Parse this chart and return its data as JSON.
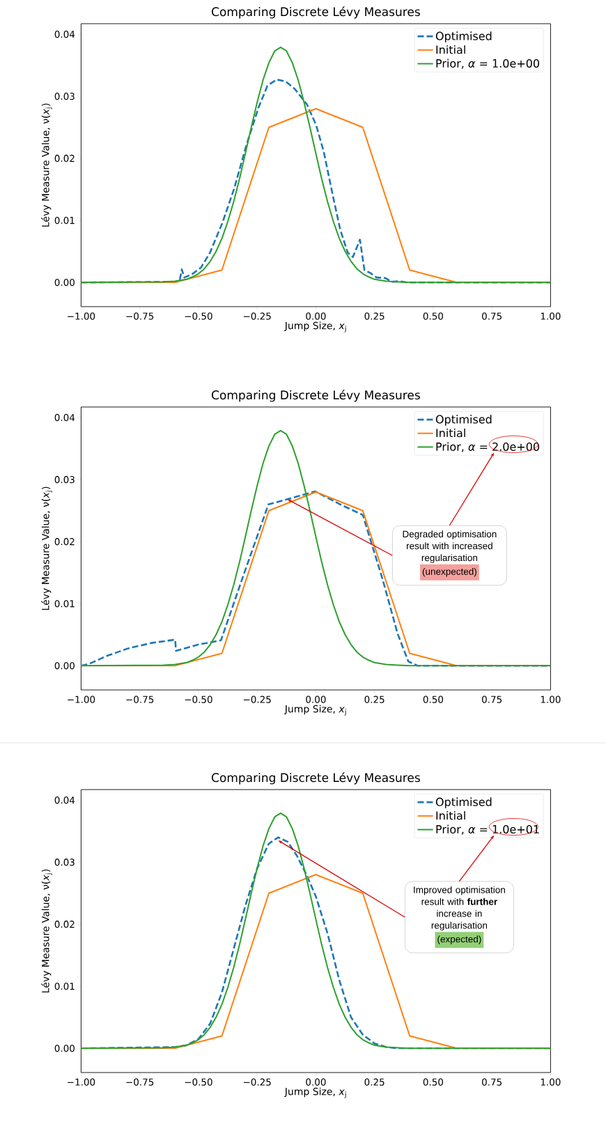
{
  "chart_data": [
    {
      "type": "line",
      "title": "Comparing Discrete Lévy Measures",
      "xlabel": "Jump Size, *x*$_{j}$",
      "ylabel": "Lévy Measure Value, ν(*x*$_{j}$)",
      "xlim": [
        -1,
        1
      ],
      "ylim": [
        -0.0039,
        0.0417
      ],
      "xticks": [
        {
          "value": -1,
          "label": "−1.00"
        },
        {
          "value": -0.75,
          "label": "−0.75"
        },
        {
          "value": -0.5,
          "label": "−0.50"
        },
        {
          "value": -0.25,
          "label": "−0.25"
        },
        {
          "value": 0,
          "label": "0.00"
        },
        {
          "value": 0.25,
          "label": "0.25"
        },
        {
          "value": 0.5,
          "label": "0.50"
        },
        {
          "value": 0.75,
          "label": "0.75"
        },
        {
          "value": 1,
          "label": "1.00"
        }
      ],
      "yticks": [
        {
          "value": 0,
          "label": "0.00"
        },
        {
          "value": 0.01,
          "label": "0.01"
        },
        {
          "value": 0.02,
          "label": "0.02"
        },
        {
          "value": 0.03,
          "label": "0.03"
        },
        {
          "value": 0.04,
          "label": "0.04"
        }
      ],
      "legend": "top right",
      "series": [
        {
          "name": "Optimised",
          "color": "#1f77b4",
          "line_style": "dashed",
          "x": [
            -1,
            -0.6,
            -0.58,
            -0.571,
            -0.56,
            -0.528,
            -0.489,
            -0.451,
            -0.399,
            -0.348,
            -0.296,
            -0.244,
            -0.206,
            -0.167,
            -0.128,
            -0.09,
            -0.038,
            0.001,
            0.033,
            0.072,
            0.104,
            0.136,
            0.158,
            0.188,
            0.207,
            0.233,
            0.259,
            0.297,
            0.323,
            0.355,
            0.387,
            1
          ],
          "values": [
            0,
            0.0001,
            0.0003,
            0.0021,
            0.0008,
            0.0013,
            0.0024,
            0.0048,
            0.0095,
            0.0151,
            0.0221,
            0.0282,
            0.0317,
            0.0327,
            0.0324,
            0.0312,
            0.0287,
            0.0254,
            0.0212,
            0.0141,
            0.0085,
            0.0048,
            0.0041,
            0.0069,
            0.002,
            0.0015,
            0.0008,
            0.0007,
            0.0001,
            0.0002,
            0,
            0
          ]
        },
        {
          "name": "Initial",
          "color": "#ff7f0e",
          "line_style": "solid",
          "x": [
            -1,
            -0.6,
            -0.4,
            -0.2,
            0,
            0.2,
            0.4,
            0.6,
            1
          ],
          "values": [
            0,
            0,
            0.002,
            0.025,
            0.028,
            0.025,
            0.002,
            0,
            0
          ]
        },
        {
          "name": "Prior, *α* = 1.0e+00",
          "color": "#2ca02c",
          "line_style": "solid",
          "x": [
            -1,
            -0.65,
            -0.6,
            -0.55,
            -0.525,
            -0.5,
            -0.475,
            -0.45,
            -0.425,
            -0.4,
            -0.375,
            -0.35,
            -0.325,
            -0.3,
            -0.275,
            -0.25,
            -0.225,
            -0.2,
            -0.175,
            -0.15,
            -0.125,
            -0.1,
            -0.075,
            -0.05,
            -0.025,
            0,
            0.025,
            0.05,
            0.075,
            0.1,
            0.125,
            0.15,
            0.175,
            0.2,
            0.225,
            0.25,
            0.3,
            0.35,
            0.4,
            1
          ],
          "values": [
            0,
            0.0001,
            0.0002,
            0.0005,
            0.0009,
            0.0014,
            0.0022,
            0.0034,
            0.005,
            0.0071,
            0.0098,
            0.013,
            0.0167,
            0.0208,
            0.025,
            0.029,
            0.0326,
            0.0354,
            0.0373,
            0.0379,
            0.0373,
            0.0354,
            0.0326,
            0.029,
            0.025,
            0.0208,
            0.0167,
            0.013,
            0.0098,
            0.0071,
            0.005,
            0.0034,
            0.0022,
            0.0014,
            0.0009,
            0.0005,
            0.0002,
            0.0001,
            0,
            0
          ]
        }
      ]
    },
    {
      "type": "line",
      "title": "Comparing Discrete Lévy Measures",
      "xlabel": "Jump Size, *x*$_{j}$",
      "ylabel": "Lévy Measure Value, ν(*x*$_{j}$)",
      "xlim": [
        -1,
        1
      ],
      "ylim": [
        -0.0039,
        0.0417
      ],
      "xticks": [
        {
          "value": -1,
          "label": "−1.00"
        },
        {
          "value": -0.75,
          "label": "−0.75"
        },
        {
          "value": -0.5,
          "label": "−0.50"
        },
        {
          "value": -0.25,
          "label": "−0.25"
        },
        {
          "value": 0,
          "label": "0.00"
        },
        {
          "value": 0.25,
          "label": "0.25"
        },
        {
          "value": 0.5,
          "label": "0.50"
        },
        {
          "value": 0.75,
          "label": "0.75"
        },
        {
          "value": 1,
          "label": "1.00"
        }
      ],
      "yticks": [
        {
          "value": 0,
          "label": "0.00"
        },
        {
          "value": 0.01,
          "label": "0.01"
        },
        {
          "value": 0.02,
          "label": "0.02"
        },
        {
          "value": 0.03,
          "label": "0.03"
        },
        {
          "value": 0.04,
          "label": "0.04"
        }
      ],
      "legend": "top right",
      "series": [
        {
          "name": "Optimised",
          "color": "#1f77b4",
          "line_style": "dashed",
          "x": [
            -1,
            -0.966,
            -0.889,
            -0.799,
            -0.696,
            -0.599,
            -0.596,
            -0.502,
            -0.404,
            -0.309,
            -0.202,
            -0.115,
            -0.003,
            0.104,
            0.2,
            0.284,
            0.349,
            0.394,
            0.433,
            1
          ],
          "values": [
            0,
            0.0003,
            0.0016,
            0.0028,
            0.0037,
            0.0042,
            0.0024,
            0.0034,
            0.0041,
            0.0145,
            0.026,
            0.0269,
            0.0281,
            0.026,
            0.0243,
            0.014,
            0.0051,
            0.0007,
            0,
            0
          ]
        },
        {
          "name": "Initial",
          "color": "#ff7f0e",
          "line_style": "solid",
          "x": [
            -1,
            -0.6,
            -0.4,
            -0.2,
            0,
            0.2,
            0.4,
            0.6,
            1
          ],
          "values": [
            0,
            0,
            0.002,
            0.025,
            0.028,
            0.025,
            0.002,
            0,
            0
          ]
        },
        {
          "name": "Prior, *α* = 2.0e+00",
          "color": "#2ca02c",
          "line_style": "solid",
          "x": [
            -1,
            -0.65,
            -0.6,
            -0.55,
            -0.525,
            -0.5,
            -0.475,
            -0.45,
            -0.425,
            -0.4,
            -0.375,
            -0.35,
            -0.325,
            -0.3,
            -0.275,
            -0.25,
            -0.225,
            -0.2,
            -0.175,
            -0.15,
            -0.125,
            -0.1,
            -0.075,
            -0.05,
            -0.025,
            0,
            0.025,
            0.05,
            0.075,
            0.1,
            0.125,
            0.15,
            0.175,
            0.2,
            0.225,
            0.25,
            0.3,
            0.35,
            0.4,
            1
          ],
          "values": [
            0,
            0.0001,
            0.0002,
            0.0005,
            0.0009,
            0.0014,
            0.0022,
            0.0034,
            0.005,
            0.0071,
            0.0098,
            0.013,
            0.0167,
            0.0208,
            0.025,
            0.029,
            0.0326,
            0.0354,
            0.0373,
            0.0379,
            0.0373,
            0.0354,
            0.0326,
            0.029,
            0.025,
            0.0208,
            0.0167,
            0.013,
            0.0098,
            0.0071,
            0.005,
            0.0034,
            0.0022,
            0.0014,
            0.0009,
            0.0005,
            0.0002,
            0.0001,
            0,
            0
          ]
        }
      ],
      "annotations": [
        {
          "text": "Degraded optimisation result with increased regularisation",
          "x": -0.12,
          "y": 0.0268
        },
        "(unexpected)"
      ]
    },
    {
      "type": "line",
      "title": "Comparing Discrete Lévy Measures",
      "xlabel": "Jump Size, *x*$_{j}$",
      "ylabel": "Lévy Measure Value, ν(*x*$_{j}$)",
      "xlim": [
        -1,
        1
      ],
      "ylim": [
        -0.0039,
        0.0417
      ],
      "xticks": [
        {
          "value": -1,
          "label": "−1.00"
        },
        {
          "value": -0.75,
          "label": "−0.75"
        },
        {
          "value": -0.5,
          "label": "−0.50"
        },
        {
          "value": -0.25,
          "label": "−0.25"
        },
        {
          "value": 0,
          "label": "0.00"
        },
        {
          "value": 0.25,
          "label": "0.25"
        },
        {
          "value": 0.5,
          "label": "0.50"
        },
        {
          "value": 0.75,
          "label": "0.75"
        },
        {
          "value": 1,
          "label": "1.00"
        }
      ],
      "yticks": [
        {
          "value": 0,
          "label": "0.00"
        },
        {
          "value": 0.01,
          "label": "0.01"
        },
        {
          "value": 0.02,
          "label": "0.02"
        },
        {
          "value": 0.03,
          "label": "0.03"
        },
        {
          "value": 0.04,
          "label": "0.04"
        }
      ],
      "legend": "top right",
      "series": [
        {
          "name": "Optimised",
          "color": "#1f77b4",
          "line_style": "dashed",
          "x": [
            -1,
            -0.6,
            -0.55,
            -0.5,
            -0.45,
            -0.4,
            -0.35,
            -0.3,
            -0.25,
            -0.2,
            -0.16,
            -0.12,
            -0.08,
            -0.04,
            0,
            0.05,
            0.1,
            0.15,
            0.2,
            0.25,
            0.3,
            0.35,
            1
          ],
          "values": [
            0,
            0.0002,
            0.0005,
            0.0015,
            0.004,
            0.009,
            0.016,
            0.023,
            0.029,
            0.033,
            0.034,
            0.0333,
            0.031,
            0.028,
            0.0245,
            0.0185,
            0.011,
            0.005,
            0.0022,
            0.0008,
            0.0002,
            0,
            0
          ]
        },
        {
          "name": "Initial",
          "color": "#ff7f0e",
          "line_style": "solid",
          "x": [
            -1,
            -0.6,
            -0.4,
            -0.2,
            0,
            0.2,
            0.4,
            0.6,
            1
          ],
          "values": [
            0,
            0,
            0.002,
            0.025,
            0.028,
            0.025,
            0.002,
            0,
            0
          ]
        },
        {
          "name": "Prior, *α* = 1.0e+01",
          "color": "#2ca02c",
          "line_style": "solid",
          "x": [
            -1,
            -0.65,
            -0.6,
            -0.55,
            -0.525,
            -0.5,
            -0.475,
            -0.45,
            -0.425,
            -0.4,
            -0.375,
            -0.35,
            -0.325,
            -0.3,
            -0.275,
            -0.25,
            -0.225,
            -0.2,
            -0.175,
            -0.15,
            -0.125,
            -0.1,
            -0.075,
            -0.05,
            -0.025,
            0,
            0.025,
            0.05,
            0.075,
            0.1,
            0.125,
            0.15,
            0.175,
            0.2,
            0.225,
            0.25,
            0.3,
            0.35,
            0.4,
            1
          ],
          "values": [
            0,
            0.0001,
            0.0002,
            0.0005,
            0.0009,
            0.0014,
            0.0022,
            0.0034,
            0.005,
            0.0071,
            0.0098,
            0.013,
            0.0167,
            0.0208,
            0.025,
            0.029,
            0.0326,
            0.0354,
            0.0373,
            0.0379,
            0.0373,
            0.0354,
            0.0326,
            0.029,
            0.025,
            0.0208,
            0.0167,
            0.013,
            0.0098,
            0.0071,
            0.005,
            0.0034,
            0.0022,
            0.0014,
            0.0009,
            0.0005,
            0.0002,
            0.0001,
            0,
            0
          ]
        }
      ],
      "annotations": [
        {
          "text": "Improved optimisation result with **further** increase in regularisation",
          "x": -0.16,
          "y": 0.0335
        },
        "(expected)"
      ]
    }
  ]
}
